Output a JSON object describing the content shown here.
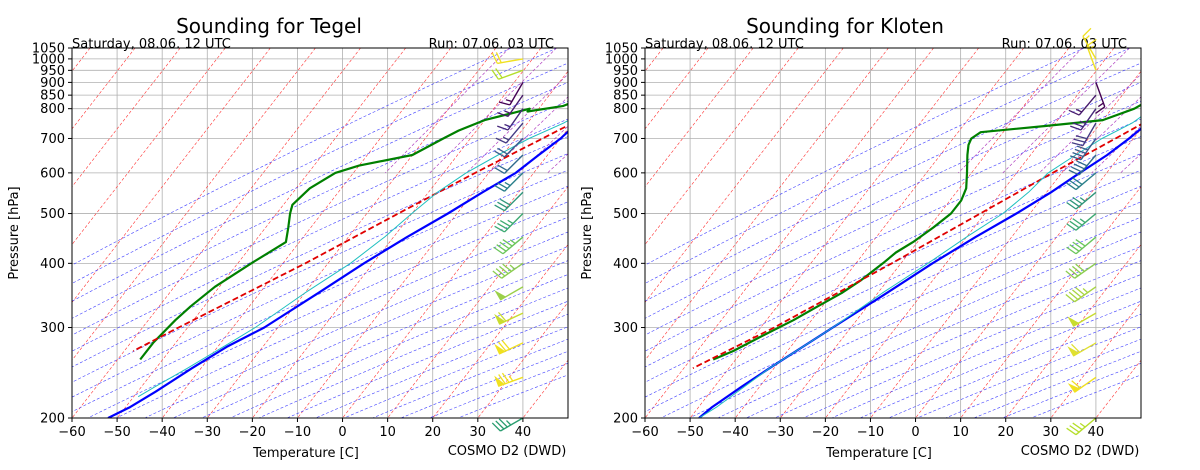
{
  "chart_data": [
    {
      "type": "line",
      "chart_kind": "skew-T log-p sounding",
      "title": "Sounding for Tegel",
      "subtitle_left": "Saturday, 08.06. 12 UTC",
      "subtitle_right": "Run: 07.06. 03 UTC",
      "xlabel": "Temperature [C]",
      "ylabel": "Pressure [hPa]",
      "credit": "COSMO D2 (DWD)",
      "xlim": [
        -60,
        50
      ],
      "ylim": [
        1050,
        200
      ],
      "yscale": "log",
      "grid": true,
      "x_ticks": [
        -60,
        -50,
        -40,
        -30,
        -20,
        -10,
        0,
        10,
        20,
        30,
        40
      ],
      "y_ticks": [
        200,
        300,
        400,
        500,
        600,
        700,
        800,
        850,
        900,
        950,
        1000,
        1050
      ],
      "wind_barb_x": 40,
      "series": [
        {
          "role": "temperature",
          "color": "#0000ff",
          "points": [
            [
              1000,
              21.5
            ],
            [
              975,
              19.5
            ],
            [
              950,
              17.5
            ],
            [
              925,
              15.5
            ],
            [
              900,
              13.5
            ],
            [
              850,
              9
            ],
            [
              800,
              5
            ],
            [
              770,
              2
            ],
            [
              750,
              1
            ],
            [
              700,
              0
            ],
            [
              650,
              -2
            ],
            [
              600,
              -4
            ],
            [
              550,
              -8
            ],
            [
              500,
              -12
            ],
            [
              450,
              -17
            ],
            [
              400,
              -22
            ],
            [
              350,
              -27
            ],
            [
              300,
              -33
            ],
            [
              275,
              -38
            ],
            [
              250,
              -42
            ],
            [
              225,
              -46
            ],
            [
              210,
              -49
            ],
            [
              200,
              -52
            ]
          ]
        },
        {
          "role": "dewpoint",
          "color": "#008000",
          "points": [
            [
              1000,
              3.5
            ],
            [
              975,
              3.2
            ],
            [
              950,
              2.5
            ],
            [
              925,
              2
            ],
            [
              900,
              1.5
            ],
            [
              850,
              -1
            ],
            [
              810,
              -5
            ],
            [
              790,
              -12
            ],
            [
              800,
              -12
            ],
            [
              760,
              -20
            ],
            [
              725,
              -24
            ],
            [
              700,
              -26
            ],
            [
              650,
              -30
            ],
            [
              620,
              -40
            ],
            [
              600,
              -44
            ],
            [
              560,
              -47
            ],
            [
              520,
              -48
            ],
            [
              500,
              -47
            ],
            [
              470,
              -45
            ],
            [
              440,
              -43
            ],
            [
              400,
              -47
            ],
            [
              360,
              -51
            ],
            [
              330,
              -53
            ],
            [
              310,
              -54
            ],
            [
              280,
              -55
            ],
            [
              260,
              -55
            ]
          ]
        },
        {
          "role": "parcel",
          "color": "#e00000",
          "dashed": true,
          "points": [
            [
              1000,
              22
            ],
            [
              950,
              16.5
            ],
            [
              900,
              12
            ],
            [
              850,
              8
            ],
            [
              800,
              4
            ],
            [
              750,
              0
            ],
            [
              700,
              -4
            ],
            [
              600,
              -13
            ],
            [
              500,
              -23
            ],
            [
              400,
              -35
            ],
            [
              300,
              -52
            ],
            [
              270,
              -58
            ]
          ]
        },
        {
          "role": "wet-bulb",
          "color": "#20c0c0",
          "points": [
            [
              1000,
              12
            ],
            [
              950,
              10
            ],
            [
              900,
              8
            ],
            [
              850,
              4
            ],
            [
              800,
              1
            ],
            [
              750,
              -2
            ],
            [
              700,
              -7
            ],
            [
              650,
              -11
            ],
            [
              600,
              -15
            ],
            [
              550,
              -18
            ],
            [
              500,
              -20
            ],
            [
              450,
              -22
            ],
            [
              400,
              -25
            ],
            [
              350,
              -30
            ],
            [
              300,
              -35
            ],
            [
              280,
              -38
            ],
            [
              250,
              -43
            ],
            [
              230,
              -47
            ],
            [
              220,
              -49
            ]
          ]
        }
      ],
      "wind_barbs": [
        {
          "p": 200,
          "dir": 240,
          "spd": 35,
          "color": "#2a9d6f"
        },
        {
          "p": 240,
          "dir": 250,
          "spd": 75,
          "color": "#f0e020"
        },
        {
          "p": 280,
          "dir": 245,
          "spd": 70,
          "color": "#f0e020"
        },
        {
          "p": 320,
          "dir": 245,
          "spd": 60,
          "color": "#c9dc2f"
        },
        {
          "p": 360,
          "dir": 240,
          "spd": 50,
          "color": "#9bd04b"
        },
        {
          "p": 400,
          "dir": 235,
          "spd": 45,
          "color": "#8ccd51"
        },
        {
          "p": 450,
          "dir": 230,
          "spd": 45,
          "color": "#6bc65b"
        },
        {
          "p": 500,
          "dir": 225,
          "spd": 35,
          "color": "#3daa72"
        },
        {
          "p": 550,
          "dir": 225,
          "spd": 30,
          "color": "#2e967a"
        },
        {
          "p": 600,
          "dir": 225,
          "spd": 25,
          "color": "#2a7f8a"
        },
        {
          "p": 650,
          "dir": 225,
          "spd": 20,
          "color": "#306a8c"
        },
        {
          "p": 700,
          "dir": 225,
          "spd": 20,
          "color": "#3a5c8b"
        },
        {
          "p": 750,
          "dir": 220,
          "spd": 15,
          "color": "#443b84"
        },
        {
          "p": 800,
          "dir": 215,
          "spd": 15,
          "color": "#46277a"
        },
        {
          "p": 850,
          "dir": 215,
          "spd": 15,
          "color": "#481a6c"
        },
        {
          "p": 900,
          "dir": 210,
          "spd": 15,
          "color": "#440154"
        },
        {
          "p": 950,
          "dir": 250,
          "spd": 20,
          "color": "#b5de2b"
        },
        {
          "p": 1000,
          "dir": 260,
          "spd": 20,
          "color": "#f0e020"
        }
      ]
    },
    {
      "type": "line",
      "chart_kind": "skew-T log-p sounding",
      "title": "Sounding for Kloten",
      "subtitle_left": "Saturday, 08.06. 12 UTC",
      "subtitle_right": "Run: 07.06. 03 UTC",
      "xlabel": "Temperature [C]",
      "ylabel": "Pressure [hPa]",
      "credit": "COSMO D2 (DWD)",
      "xlim": [
        -60,
        50
      ],
      "ylim": [
        1050,
        200
      ],
      "yscale": "log",
      "grid": true,
      "x_ticks": [
        -60,
        -50,
        -40,
        -30,
        -20,
        -10,
        0,
        10,
        20,
        30,
        40
      ],
      "y_ticks": [
        200,
        300,
        400,
        500,
        600,
        700,
        800,
        850,
        900,
        950,
        1000,
        1050
      ],
      "wind_barb_x": 40,
      "series": [
        {
          "role": "temperature",
          "color": "#0000ff",
          "points": [
            [
              990,
              20
            ],
            [
              975,
              18
            ],
            [
              950,
              14
            ],
            [
              925,
              12
            ],
            [
              900,
              10
            ],
            [
              850,
              7
            ],
            [
              800,
              3.5
            ],
            [
              750,
              0.5
            ],
            [
              700,
              -1
            ],
            [
              650,
              -3
            ],
            [
              600,
              -6
            ],
            [
              550,
              -9
            ],
            [
              500,
              -13
            ],
            [
              450,
              -18
            ],
            [
              400,
              -23
            ],
            [
              350,
              -28
            ],
            [
              300,
              -34
            ],
            [
              250,
              -41
            ],
            [
              230,
              -44
            ],
            [
              210,
              -47
            ],
            [
              200,
              -48
            ]
          ]
        },
        {
          "role": "dewpoint",
          "color": "#008000",
          "points": [
            [
              990,
              6.5
            ],
            [
              975,
              6
            ],
            [
              950,
              5
            ],
            [
              925,
              3
            ],
            [
              900,
              2
            ],
            [
              870,
              1
            ],
            [
              850,
              -2
            ],
            [
              800,
              -5
            ],
            [
              760,
              -10
            ],
            [
              740,
              -22
            ],
            [
              720,
              -35
            ],
            [
              700,
              -36
            ],
            [
              680,
              -35.5
            ],
            [
              650,
              -34
            ],
            [
              600,
              -31
            ],
            [
              560,
              -28.5
            ],
            [
              530,
              -27.5
            ],
            [
              500,
              -27.5
            ],
            [
              470,
              -29
            ],
            [
              440,
              -31
            ],
            [
              420,
              -33
            ],
            [
              400,
              -34
            ],
            [
              370,
              -36
            ],
            [
              350,
              -38
            ],
            [
              330,
              -41
            ],
            [
              310,
              -44
            ],
            [
              290,
              -48
            ],
            [
              270,
              -52
            ],
            [
              260,
              -55
            ]
          ]
        },
        {
          "role": "parcel",
          "color": "#e00000",
          "dashed": true,
          "points": [
            [
              990,
              20
            ],
            [
              950,
              15
            ],
            [
              900,
              11
            ],
            [
              850,
              7
            ],
            [
              800,
              3
            ],
            [
              750,
              -0.5
            ],
            [
              700,
              -4
            ],
            [
              600,
              -12
            ],
            [
              500,
              -21
            ],
            [
              400,
              -32
            ],
            [
              300,
              -47
            ],
            [
              250,
              -58
            ]
          ]
        },
        {
          "role": "wet-bulb",
          "color": "#20c0c0",
          "points": [
            [
              990,
              12
            ],
            [
              950,
              10
            ],
            [
              900,
              7
            ],
            [
              850,
              2
            ],
            [
              800,
              -1
            ],
            [
              750,
              -3
            ],
            [
              700,
              -7
            ],
            [
              650,
              -10
            ],
            [
              600,
              -13
            ],
            [
              550,
              -14
            ],
            [
              500,
              -16
            ],
            [
              450,
              -20
            ],
            [
              400,
              -24
            ],
            [
              350,
              -29
            ],
            [
              300,
              -34
            ],
            [
              250,
              -41
            ],
            [
              210,
              -46
            ],
            [
              200,
              -48
            ]
          ]
        }
      ],
      "wind_barbs": [
        {
          "p": 200,
          "dir": 230,
          "spd": 35,
          "color": "#b5de2b"
        },
        {
          "p": 240,
          "dir": 235,
          "spd": 60,
          "color": "#f0e020"
        },
        {
          "p": 280,
          "dir": 240,
          "spd": 60,
          "color": "#e0e030"
        },
        {
          "p": 320,
          "dir": 240,
          "spd": 50,
          "color": "#c9dc2f"
        },
        {
          "p": 360,
          "dir": 235,
          "spd": 45,
          "color": "#a8d542"
        },
        {
          "p": 400,
          "dir": 235,
          "spd": 40,
          "color": "#8ccd51"
        },
        {
          "p": 450,
          "dir": 230,
          "spd": 40,
          "color": "#6bc65b"
        },
        {
          "p": 500,
          "dir": 230,
          "spd": 35,
          "color": "#3daa72"
        },
        {
          "p": 550,
          "dir": 230,
          "spd": 35,
          "color": "#2e967a"
        },
        {
          "p": 600,
          "dir": 230,
          "spd": 30,
          "color": "#2a7f8a"
        },
        {
          "p": 650,
          "dir": 220,
          "spd": 40,
          "color": "#306a8c"
        },
        {
          "p": 700,
          "dir": 215,
          "spd": 40,
          "color": "#3a5c8b"
        },
        {
          "p": 750,
          "dir": 210,
          "spd": 30,
          "color": "#443b84"
        },
        {
          "p": 800,
          "dir": 215,
          "spd": 25,
          "color": "#46277a"
        },
        {
          "p": 850,
          "dir": 220,
          "spd": 15,
          "color": "#481a6c"
        },
        {
          "p": 900,
          "dir": 160,
          "spd": 15,
          "color": "#440154"
        },
        {
          "p": 950,
          "dir": 340,
          "spd": 15,
          "color": "#f0e020"
        },
        {
          "p": 1000,
          "dir": 330,
          "spd": 15,
          "color": "#f0e020"
        }
      ]
    }
  ]
}
